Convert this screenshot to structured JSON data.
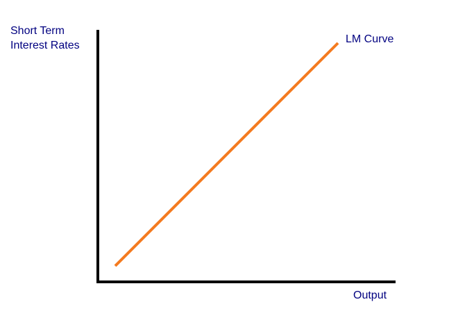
{
  "diagram": {
    "y_axis_label": [
      "Short Term",
      "Interest Rates"
    ],
    "x_axis_label": "Output",
    "curve_label": "LM Curve"
  },
  "colors": {
    "label_text": "#000080",
    "axis": "#000000",
    "curve": "#f47b20"
  }
}
